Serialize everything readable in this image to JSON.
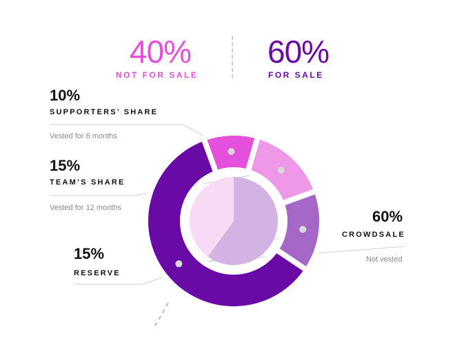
{
  "header": {
    "not_for_sale_pct": "40%",
    "not_for_sale_label": "NOT FOR SALE",
    "for_sale_pct": "60%",
    "for_sale_label": "FOR SALE"
  },
  "segments": [
    {
      "pct": "10%",
      "name": "SUPPORTERS’ SHARE",
      "note": "Vested for 6 months"
    },
    {
      "pct": "15%",
      "name": "TEAM’S SHARE",
      "note": "Vested for 12 months"
    },
    {
      "pct": "15%",
      "name": "RESERVE",
      "note": ""
    },
    {
      "pct": "60%",
      "name": "CROWDSALE",
      "note": "Not vested"
    }
  ],
  "colors": {
    "pink_accent": "#e64fd8",
    "purple_accent": "#6a0aa6",
    "supporters": "#e44fdc",
    "team": "#ee97e6",
    "reserve": "#a467c8",
    "crowdsale": "#6a0aa6",
    "inner_light": "#f7dbf4",
    "inner_dark": "#d3b3e3"
  },
  "chart_data": {
    "type": "pie",
    "title": "",
    "categories": [
      "SUPPORTERS’ SHARE",
      "TEAM’S SHARE",
      "RESERVE",
      "CROWDSALE"
    ],
    "values": [
      10,
      15,
      15,
      60
    ],
    "inner_ring": {
      "categories": [
        "NOT FOR SALE",
        "FOR SALE"
      ],
      "values": [
        40,
        60
      ]
    }
  }
}
